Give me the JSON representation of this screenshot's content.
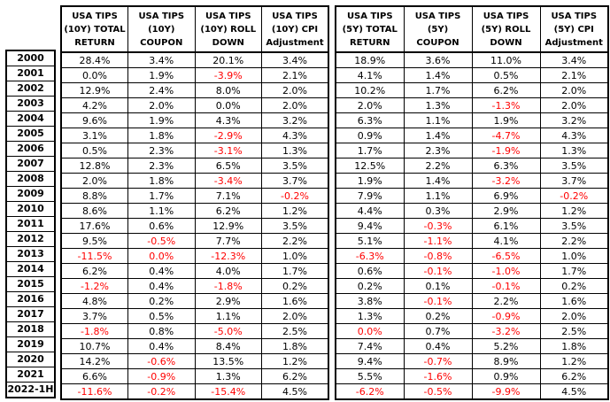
{
  "colors": {
    "text": "#000000",
    "negative_text": "#FF0000",
    "border": "#000000",
    "background": "#FFFFFF"
  },
  "chart_data": {
    "type": "table",
    "title": "",
    "row_labels": [
      "2000",
      "2001",
      "2002",
      "2003",
      "2004",
      "2005",
      "2006",
      "2007",
      "2008",
      "2009",
      "2010",
      "2011",
      "2012",
      "2013",
      "2014",
      "2015",
      "2016",
      "2017",
      "2018",
      "2019",
      "2020",
      "2021",
      "2022-1H"
    ],
    "red_means": "negative / negative-rounded value shown in red",
    "column_groups": [
      {
        "group": "USA TIPS (10Y)",
        "columns": [
          {
            "name": "USA TIPS (10Y) TOTAL RETURN",
            "header_lines": [
              "USA TIPS",
              "(10Y) TOTAL",
              "RETURN"
            ]
          },
          {
            "name": "USA TIPS (10Y) COUPON",
            "header_lines": [
              "USA TIPS",
              "(10Y)",
              "COUPON"
            ]
          },
          {
            "name": "USA TIPS (10Y) ROLL DOWN",
            "header_lines": [
              "USA TIPS",
              "(10Y) ROLL",
              "DOWN"
            ]
          },
          {
            "name": "USA TIPS (10Y) CPI Adjustment",
            "header_lines": [
              "USA TIPS",
              "(10Y) CPI",
              "Adjustment"
            ]
          }
        ],
        "values": [
          [
            "28.4%",
            "3.4%",
            "20.1%",
            "3.4%"
          ],
          [
            "0.0%",
            "1.9%",
            "-3.9%",
            "2.1%"
          ],
          [
            "12.9%",
            "2.4%",
            "8.0%",
            "2.0%"
          ],
          [
            "4.2%",
            "2.0%",
            "0.0%",
            "2.0%"
          ],
          [
            "9.6%",
            "1.9%",
            "4.3%",
            "3.2%"
          ],
          [
            "3.1%",
            "1.8%",
            "-2.9%",
            "4.3%"
          ],
          [
            "0.5%",
            "2.3%",
            "-3.1%",
            "1.3%"
          ],
          [
            "12.8%",
            "2.3%",
            "6.5%",
            "3.5%"
          ],
          [
            "2.0%",
            "1.8%",
            "-3.4%",
            "3.7%"
          ],
          [
            "8.8%",
            "1.7%",
            "7.1%",
            "-0.2%"
          ],
          [
            "8.6%",
            "1.1%",
            "6.2%",
            "1.2%"
          ],
          [
            "17.6%",
            "0.6%",
            "12.9%",
            "3.5%"
          ],
          [
            "9.5%",
            "-0.5%",
            "7.7%",
            "2.2%"
          ],
          [
            "-11.5%",
            "0.0%",
            "-12.3%",
            "1.0%"
          ],
          [
            "6.2%",
            "0.4%",
            "4.0%",
            "1.7%"
          ],
          [
            "-1.2%",
            "0.4%",
            "-1.8%",
            "0.2%"
          ],
          [
            "4.8%",
            "0.2%",
            "2.9%",
            "1.6%"
          ],
          [
            "3.7%",
            "0.5%",
            "1.1%",
            "2.0%"
          ],
          [
            "-1.8%",
            "0.8%",
            "-5.0%",
            "2.5%"
          ],
          [
            "10.7%",
            "0.4%",
            "8.4%",
            "1.8%"
          ],
          [
            "14.2%",
            "-0.6%",
            "13.5%",
            "1.2%"
          ],
          [
            "6.6%",
            "-0.9%",
            "1.3%",
            "6.2%"
          ],
          [
            "-11.6%",
            "-0.2%",
            "-15.4%",
            "4.5%"
          ]
        ],
        "red_flags": [
          [
            0,
            0,
            0,
            0
          ],
          [
            0,
            0,
            1,
            0
          ],
          [
            0,
            0,
            0,
            0
          ],
          [
            0,
            0,
            0,
            0
          ],
          [
            0,
            0,
            0,
            0
          ],
          [
            0,
            0,
            1,
            0
          ],
          [
            0,
            0,
            1,
            0
          ],
          [
            0,
            0,
            0,
            0
          ],
          [
            0,
            0,
            1,
            0
          ],
          [
            0,
            0,
            0,
            1
          ],
          [
            0,
            0,
            0,
            0
          ],
          [
            0,
            0,
            0,
            0
          ],
          [
            0,
            1,
            0,
            0
          ],
          [
            1,
            1,
            1,
            0
          ],
          [
            0,
            0,
            0,
            0
          ],
          [
            1,
            0,
            1,
            0
          ],
          [
            0,
            0,
            0,
            0
          ],
          [
            0,
            0,
            0,
            0
          ],
          [
            1,
            0,
            1,
            0
          ],
          [
            0,
            0,
            0,
            0
          ],
          [
            0,
            1,
            0,
            0
          ],
          [
            0,
            1,
            0,
            0
          ],
          [
            1,
            1,
            1,
            0
          ]
        ]
      },
      {
        "group": "USA TIPS (5Y)",
        "columns": [
          {
            "name": "USA TIPS (5Y) TOTAL RETURN",
            "header_lines": [
              "USA TIPS",
              "(5Y) TOTAL",
              "RETURN"
            ]
          },
          {
            "name": "USA TIPS (5Y) COUPON",
            "header_lines": [
              "USA TIPS",
              "(5Y)",
              "COUPON"
            ]
          },
          {
            "name": "USA TIPS (5Y) ROLL DOWN",
            "header_lines": [
              "USA TIPS",
              "(5Y) ROLL",
              "DOWN"
            ]
          },
          {
            "name": "USA TIPS (5Y) CPI Adjustment",
            "header_lines": [
              "USA TIPS",
              "(5Y) CPI",
              "Adjustment"
            ]
          }
        ],
        "values": [
          [
            "18.9%",
            "3.6%",
            "11.0%",
            "3.4%"
          ],
          [
            "4.1%",
            "1.4%",
            "0.5%",
            "2.1%"
          ],
          [
            "10.2%",
            "1.7%",
            "6.2%",
            "2.0%"
          ],
          [
            "2.0%",
            "1.3%",
            "-1.3%",
            "2.0%"
          ],
          [
            "6.3%",
            "1.1%",
            "1.9%",
            "3.2%"
          ],
          [
            "0.9%",
            "1.4%",
            "-4.7%",
            "4.3%"
          ],
          [
            "1.7%",
            "2.3%",
            "-1.9%",
            "1.3%"
          ],
          [
            "12.5%",
            "2.2%",
            "6.3%",
            "3.5%"
          ],
          [
            "1.9%",
            "1.4%",
            "-3.2%",
            "3.7%"
          ],
          [
            "7.9%",
            "1.1%",
            "6.9%",
            "-0.2%"
          ],
          [
            "4.4%",
            "0.3%",
            "2.9%",
            "1.2%"
          ],
          [
            "9.4%",
            "-0.3%",
            "6.1%",
            "3.5%"
          ],
          [
            "5.1%",
            "-1.1%",
            "4.1%",
            "2.2%"
          ],
          [
            "-6.3%",
            "-0.8%",
            "-6.5%",
            "1.0%"
          ],
          [
            "0.6%",
            "-0.1%",
            "-1.0%",
            "1.7%"
          ],
          [
            "0.2%",
            "0.1%",
            "-0.1%",
            "0.2%"
          ],
          [
            "3.8%",
            "-0.1%",
            "2.2%",
            "1.6%"
          ],
          [
            "1.3%",
            "0.2%",
            "-0.9%",
            "2.0%"
          ],
          [
            "0.0%",
            "0.7%",
            "-3.2%",
            "2.5%"
          ],
          [
            "7.4%",
            "0.4%",
            "5.2%",
            "1.8%"
          ],
          [
            "9.4%",
            "-0.7%",
            "8.9%",
            "1.2%"
          ],
          [
            "5.5%",
            "-1.6%",
            "0.9%",
            "6.2%"
          ],
          [
            "-6.2%",
            "-0.5%",
            "-9.9%",
            "4.5%"
          ]
        ],
        "red_flags": [
          [
            0,
            0,
            0,
            0
          ],
          [
            0,
            0,
            0,
            0
          ],
          [
            0,
            0,
            0,
            0
          ],
          [
            0,
            0,
            1,
            0
          ],
          [
            0,
            0,
            0,
            0
          ],
          [
            0,
            0,
            1,
            0
          ],
          [
            0,
            0,
            1,
            0
          ],
          [
            0,
            0,
            0,
            0
          ],
          [
            0,
            0,
            1,
            0
          ],
          [
            0,
            0,
            0,
            1
          ],
          [
            0,
            0,
            0,
            0
          ],
          [
            0,
            1,
            0,
            0
          ],
          [
            0,
            1,
            0,
            0
          ],
          [
            1,
            1,
            1,
            0
          ],
          [
            0,
            1,
            1,
            0
          ],
          [
            0,
            0,
            1,
            0
          ],
          [
            0,
            1,
            0,
            0
          ],
          [
            0,
            0,
            1,
            0
          ],
          [
            1,
            0,
            1,
            0
          ],
          [
            0,
            0,
            0,
            0
          ],
          [
            0,
            1,
            0,
            0
          ],
          [
            0,
            1,
            0,
            0
          ],
          [
            1,
            1,
            1,
            0
          ]
        ]
      }
    ]
  }
}
